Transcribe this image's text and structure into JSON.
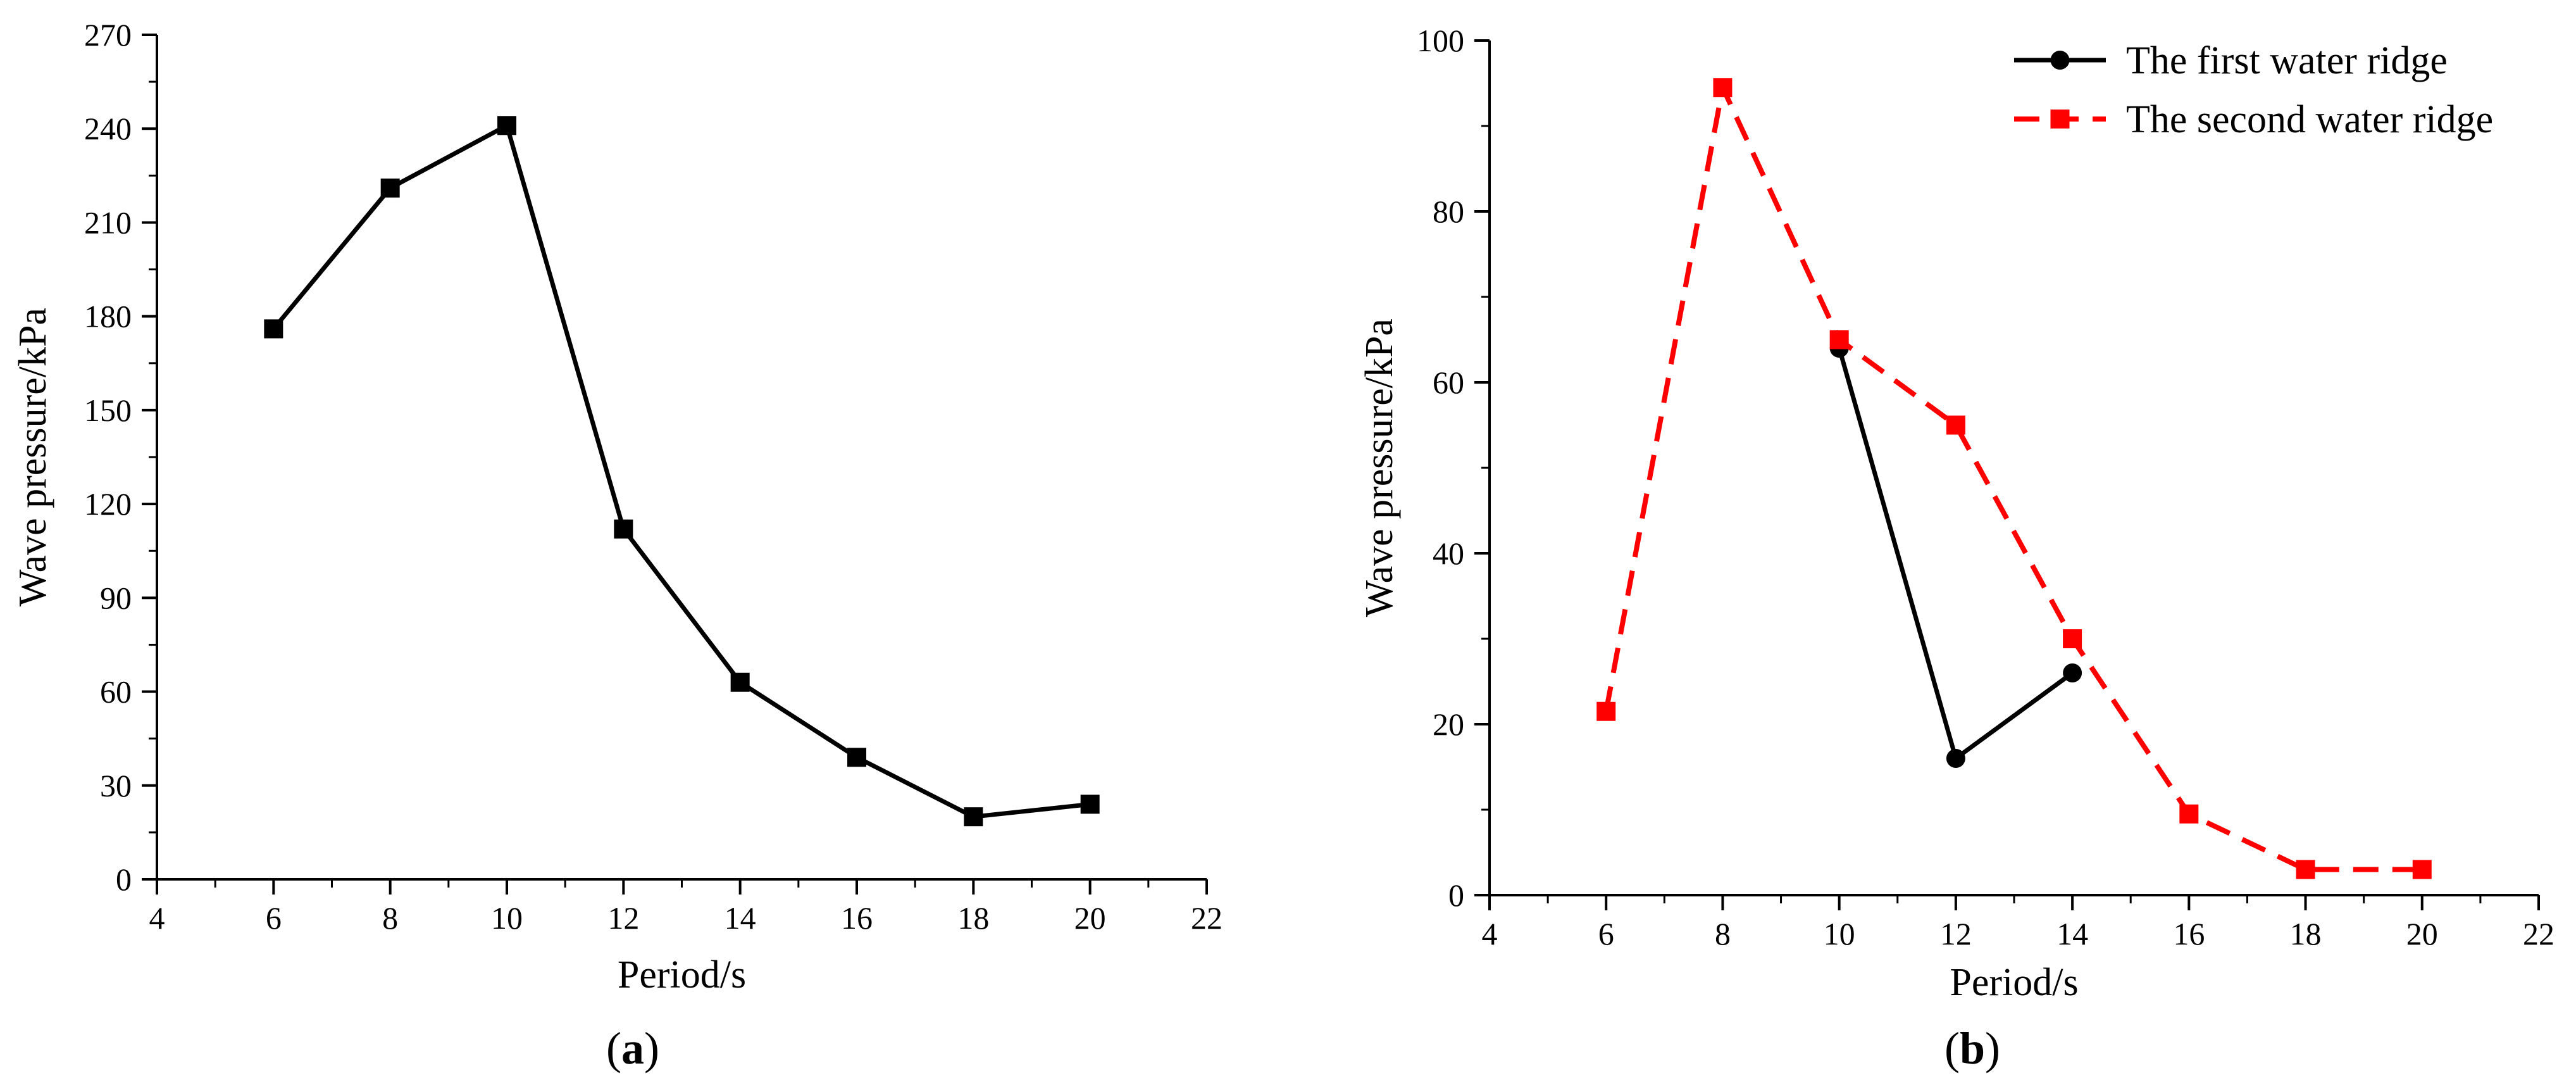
{
  "chart_data": [
    {
      "type": "line",
      "panel_label": "a",
      "xlabel": "Period/s",
      "ylabel": "Wave pressure/kPa",
      "xlim": [
        4,
        22
      ],
      "ylim": [
        0,
        270
      ],
      "xticks": [
        4,
        6,
        8,
        10,
        12,
        14,
        16,
        18,
        20,
        22
      ],
      "yticks": [
        0,
        30,
        60,
        90,
        120,
        150,
        180,
        210,
        240,
        270
      ],
      "grid": false,
      "series": [
        {
          "x": [
            6,
            8,
            10,
            12,
            14,
            16,
            18,
            20
          ],
          "values": [
            176,
            221,
            241,
            112,
            63,
            39,
            20,
            24
          ],
          "color": "#000000",
          "line_style": "solid",
          "marker": "square"
        }
      ]
    },
    {
      "type": "line",
      "panel_label": "b",
      "xlabel": "Period/s",
      "ylabel": "Wave pressure/kPa",
      "xlim": [
        4,
        22
      ],
      "ylim": [
        0,
        100
      ],
      "xticks": [
        4,
        6,
        8,
        10,
        12,
        14,
        16,
        18,
        20,
        22
      ],
      "yticks": [
        0,
        20,
        40,
        60,
        80,
        100
      ],
      "grid": false,
      "legend_position": "top-right",
      "series": [
        {
          "name": "The first water ridge",
          "x": [
            10,
            12,
            14
          ],
          "values": [
            64,
            16,
            26
          ],
          "color": "#000000",
          "line_style": "solid",
          "marker": "circle"
        },
        {
          "name": "The second water ridge",
          "x": [
            6,
            8,
            10,
            12,
            14,
            16,
            18,
            20
          ],
          "values": [
            21.5,
            94.5,
            65,
            55,
            30,
            9.5,
            3,
            3
          ],
          "color": "#ff0000",
          "line_style": "dashed",
          "marker": "square"
        }
      ]
    }
  ]
}
